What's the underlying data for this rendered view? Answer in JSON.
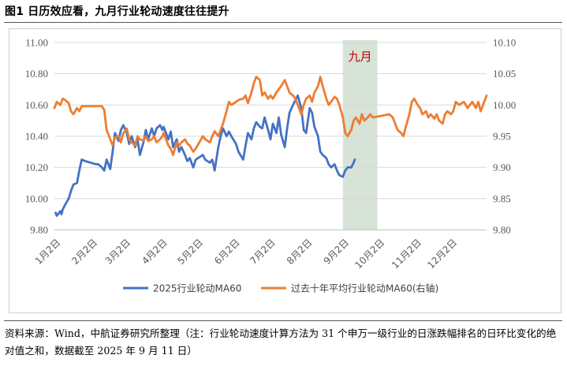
{
  "title": "图1  日历效应看，九月行业轮动速度往往提升",
  "source_note": "资料来源：Wind，中航证券研究所整理（注：行业轮动速度计算方法为 31 个申万一级行业的日涨跌幅排名的日环比变化的绝对值之和，数据截至 2025 年 9 月 11 日）",
  "colors": {
    "series_2025": "#4472C4",
    "series_10y": "#ED7D31",
    "highlight": "#D6E3D6",
    "highlight_text": "#C00000"
  },
  "chart_data": {
    "type": "line",
    "highlight": {
      "label": "九月",
      "x_start": "2025-09-01",
      "x_end": "2025-09-30"
    },
    "x_axis": {
      "range": [
        "2025-01-01",
        "2025-12-31"
      ],
      "ticks": [
        "2025-01-02",
        "2025-02-02",
        "2025-03-02",
        "2025-04-02",
        "2025-05-02",
        "2025-06-02",
        "2025-07-02",
        "2025-08-02",
        "2025-09-02",
        "2025-10-02",
        "2025-11-02",
        "2025-12-02"
      ],
      "tick_labels": [
        "1月2日",
        "2月2日",
        "3月2日",
        "4月2日",
        "5月2日",
        "6月2日",
        "7月2日",
        "8月2日",
        "9月2日",
        "10月2日",
        "11月2日",
        "12月2日"
      ]
    },
    "y_left": {
      "min": 9.8,
      "max": 11.0,
      "step": 0.2,
      "tick_labels": [
        "9.80",
        "10.00",
        "10.20",
        "10.40",
        "10.60",
        "10.80",
        "11.00"
      ]
    },
    "y_right": {
      "min": 9.8,
      "max": 10.1,
      "step": 0.05,
      "tick_labels": [
        "9.80",
        "9.85",
        "9.90",
        "9.95",
        "10.00",
        "10.05",
        "10.10"
      ]
    },
    "legend": {
      "placement": "bottom"
    },
    "series": [
      {
        "name": "2025行业轮动MA60",
        "axis": "left",
        "color": "#4472C4",
        "points": [
          [
            "2025-01-02",
            9.91
          ],
          [
            "2025-01-03",
            9.89
          ],
          [
            "2025-01-06",
            9.92
          ],
          [
            "2025-01-07",
            9.9
          ],
          [
            "2025-01-08",
            9.93
          ],
          [
            "2025-01-10",
            9.96
          ],
          [
            "2025-01-13",
            10.0
          ],
          [
            "2025-01-15",
            10.05
          ],
          [
            "2025-01-17",
            10.09
          ],
          [
            "2025-01-20",
            10.1
          ],
          [
            "2025-01-22",
            10.18
          ],
          [
            "2025-01-24",
            10.25
          ],
          [
            "2025-01-27",
            10.24
          ],
          [
            "2025-02-05",
            10.22
          ],
          [
            "2025-02-07",
            10.22
          ],
          [
            "2025-02-10",
            10.2
          ],
          [
            "2025-02-12",
            10.18
          ],
          [
            "2025-02-14",
            10.25
          ],
          [
            "2025-02-17",
            10.19
          ],
          [
            "2025-02-19",
            10.3
          ],
          [
            "2025-02-21",
            10.42
          ],
          [
            "2025-02-24",
            10.37
          ],
          [
            "2025-02-26",
            10.44
          ],
          [
            "2025-02-28",
            10.47
          ],
          [
            "2025-03-03",
            10.42
          ],
          [
            "2025-03-05",
            10.35
          ],
          [
            "2025-03-07",
            10.4
          ],
          [
            "2025-03-10",
            10.33
          ],
          [
            "2025-03-12",
            10.38
          ],
          [
            "2025-03-14",
            10.28
          ],
          [
            "2025-03-17",
            10.36
          ],
          [
            "2025-03-19",
            10.44
          ],
          [
            "2025-03-21",
            10.38
          ],
          [
            "2025-03-24",
            10.45
          ],
          [
            "2025-03-26",
            10.4
          ],
          [
            "2025-03-28",
            10.45
          ],
          [
            "2025-03-31",
            10.47
          ],
          [
            "2025-04-02",
            10.44
          ],
          [
            "2025-04-03",
            10.46
          ],
          [
            "2025-04-07",
            10.38
          ],
          [
            "2025-04-09",
            10.43
          ],
          [
            "2025-04-11",
            10.33
          ],
          [
            "2025-04-14",
            10.38
          ],
          [
            "2025-04-16",
            10.3
          ],
          [
            "2025-04-18",
            10.33
          ],
          [
            "2025-04-21",
            10.28
          ],
          [
            "2025-04-23",
            10.24
          ],
          [
            "2025-04-25",
            10.26
          ],
          [
            "2025-04-28",
            10.2
          ],
          [
            "2025-04-30",
            10.25
          ],
          [
            "2025-05-06",
            10.28
          ],
          [
            "2025-05-08",
            10.25
          ],
          [
            "2025-05-12",
            10.23
          ],
          [
            "2025-05-14",
            10.25
          ],
          [
            "2025-05-16",
            10.18
          ],
          [
            "2025-05-19",
            10.33
          ],
          [
            "2025-05-21",
            10.4
          ],
          [
            "2025-05-23",
            10.45
          ],
          [
            "2025-05-26",
            10.4
          ],
          [
            "2025-05-28",
            10.43
          ],
          [
            "2025-05-30",
            10.4
          ],
          [
            "2025-06-03",
            10.35
          ],
          [
            "2025-06-05",
            10.3
          ],
          [
            "2025-06-09",
            10.25
          ],
          [
            "2025-06-11",
            10.34
          ],
          [
            "2025-06-13",
            10.42
          ],
          [
            "2025-06-16",
            10.38
          ],
          [
            "2025-06-18",
            10.45
          ],
          [
            "2025-06-20",
            10.49
          ],
          [
            "2025-06-23",
            10.46
          ],
          [
            "2025-06-25",
            10.45
          ],
          [
            "2025-06-27",
            10.52
          ],
          [
            "2025-06-30",
            10.44
          ],
          [
            "2025-07-02",
            10.38
          ],
          [
            "2025-07-04",
            10.48
          ],
          [
            "2025-07-07",
            10.42
          ],
          [
            "2025-07-09",
            10.52
          ],
          [
            "2025-07-11",
            10.41
          ],
          [
            "2025-07-14",
            10.33
          ],
          [
            "2025-07-16",
            10.45
          ],
          [
            "2025-07-18",
            10.55
          ],
          [
            "2025-07-21",
            10.6
          ],
          [
            "2025-07-23",
            10.63
          ],
          [
            "2025-07-25",
            10.66
          ],
          [
            "2025-07-28",
            10.58
          ],
          [
            "2025-07-30",
            10.44
          ],
          [
            "2025-08-01",
            10.42
          ],
          [
            "2025-08-04",
            10.58
          ],
          [
            "2025-08-06",
            10.55
          ],
          [
            "2025-08-08",
            10.46
          ],
          [
            "2025-08-11",
            10.4
          ],
          [
            "2025-08-13",
            10.3
          ],
          [
            "2025-08-15",
            10.28
          ],
          [
            "2025-08-18",
            10.26
          ],
          [
            "2025-08-20",
            10.22
          ],
          [
            "2025-08-22",
            10.2
          ],
          [
            "2025-08-25",
            10.22
          ],
          [
            "2025-08-27",
            10.18
          ],
          [
            "2025-08-29",
            10.15
          ],
          [
            "2025-09-01",
            10.14
          ],
          [
            "2025-09-03",
            10.18
          ],
          [
            "2025-09-05",
            10.2
          ],
          [
            "2025-09-08",
            10.2
          ],
          [
            "2025-09-10",
            10.23
          ],
          [
            "2025-09-11",
            10.25
          ]
        ]
      },
      {
        "name": "过去十年平均行业轮动MA60(右轴)",
        "axis": "right",
        "color": "#ED7D31",
        "points": [
          [
            "2025-01-01",
            9.995
          ],
          [
            "2025-01-03",
            10.005
          ],
          [
            "2025-01-06",
            10.0
          ],
          [
            "2025-01-08",
            10.01
          ],
          [
            "2025-01-10",
            10.008
          ],
          [
            "2025-01-13",
            10.003
          ],
          [
            "2025-01-15",
            9.99
          ],
          [
            "2025-01-17",
            9.985
          ],
          [
            "2025-01-20",
            9.995
          ],
          [
            "2025-01-22",
            9.99
          ],
          [
            "2025-01-24",
            9.998
          ],
          [
            "2025-01-27",
            9.998
          ],
          [
            "2025-02-10",
            9.998
          ],
          [
            "2025-02-12",
            9.992
          ],
          [
            "2025-02-14",
            9.96
          ],
          [
            "2025-02-17",
            9.945
          ],
          [
            "2025-02-19",
            9.935
          ],
          [
            "2025-02-21",
            9.948
          ],
          [
            "2025-02-24",
            9.95
          ],
          [
            "2025-02-26",
            9.94
          ],
          [
            "2025-02-28",
            9.955
          ],
          [
            "2025-03-03",
            9.962
          ],
          [
            "2025-03-05",
            9.945
          ],
          [
            "2025-03-07",
            9.94
          ],
          [
            "2025-03-10",
            9.935
          ],
          [
            "2025-03-12",
            9.95
          ],
          [
            "2025-03-14",
            9.945
          ],
          [
            "2025-03-17",
            9.943
          ],
          [
            "2025-03-19",
            9.95
          ],
          [
            "2025-03-21",
            9.942
          ],
          [
            "2025-03-24",
            9.945
          ],
          [
            "2025-03-26",
            9.95
          ],
          [
            "2025-03-28",
            9.94
          ],
          [
            "2025-03-31",
            9.945
          ],
          [
            "2025-04-02",
            9.95
          ],
          [
            "2025-04-03",
            9.955
          ],
          [
            "2025-04-07",
            9.935
          ],
          [
            "2025-04-09",
            9.93
          ],
          [
            "2025-04-11",
            9.92
          ],
          [
            "2025-04-14",
            9.94
          ],
          [
            "2025-04-16",
            9.935
          ],
          [
            "2025-04-18",
            9.94
          ],
          [
            "2025-04-21",
            9.945
          ],
          [
            "2025-04-23",
            9.938
          ],
          [
            "2025-04-25",
            9.935
          ],
          [
            "2025-04-28",
            9.925
          ],
          [
            "2025-04-30",
            9.93
          ],
          [
            "2025-05-06",
            9.95
          ],
          [
            "2025-05-08",
            9.945
          ],
          [
            "2025-05-12",
            9.94
          ],
          [
            "2025-05-14",
            9.95
          ],
          [
            "2025-05-16",
            9.958
          ],
          [
            "2025-05-19",
            9.95
          ],
          [
            "2025-05-21",
            9.96
          ],
          [
            "2025-05-23",
            9.97
          ],
          [
            "2025-05-26",
            9.99
          ],
          [
            "2025-05-28",
            10.005
          ],
          [
            "2025-05-30",
            10.0
          ],
          [
            "2025-06-03",
            10.005
          ],
          [
            "2025-06-05",
            10.008
          ],
          [
            "2025-06-09",
            10.01
          ],
          [
            "2025-06-11",
            10.015
          ],
          [
            "2025-06-13",
            10.003
          ],
          [
            "2025-06-16",
            10.02
          ],
          [
            "2025-06-18",
            10.035
          ],
          [
            "2025-06-20",
            10.045
          ],
          [
            "2025-06-23",
            10.04
          ],
          [
            "2025-06-25",
            10.015
          ],
          [
            "2025-06-27",
            10.02
          ],
          [
            "2025-06-30",
            10.01
          ],
          [
            "2025-07-02",
            10.015
          ],
          [
            "2025-07-04",
            10.01
          ],
          [
            "2025-07-07",
            10.02
          ],
          [
            "2025-07-09",
            10.025
          ],
          [
            "2025-07-11",
            10.03
          ],
          [
            "2025-07-14",
            10.04
          ],
          [
            "2025-07-16",
            10.03
          ],
          [
            "2025-07-18",
            10.02
          ],
          [
            "2025-07-21",
            10.015
          ],
          [
            "2025-07-23",
            10.01
          ],
          [
            "2025-07-25",
            10.0
          ],
          [
            "2025-07-28",
            9.985
          ],
          [
            "2025-07-30",
            10.0
          ],
          [
            "2025-08-01",
            10.01
          ],
          [
            "2025-08-04",
            10.015
          ],
          [
            "2025-08-06",
            10.005
          ],
          [
            "2025-08-08",
            10.02
          ],
          [
            "2025-08-11",
            10.03
          ],
          [
            "2025-08-13",
            10.045
          ],
          [
            "2025-08-15",
            10.03
          ],
          [
            "2025-08-18",
            10.01
          ],
          [
            "2025-08-20",
            10.0
          ],
          [
            "2025-08-22",
            10.005
          ],
          [
            "2025-08-25",
            10.013
          ],
          [
            "2025-08-27",
            10.01
          ],
          [
            "2025-08-29",
            10.0
          ],
          [
            "2025-09-01",
            9.98
          ],
          [
            "2025-09-03",
            9.955
          ],
          [
            "2025-09-05",
            9.95
          ],
          [
            "2025-09-08",
            9.96
          ],
          [
            "2025-09-10",
            9.975
          ],
          [
            "2025-09-12",
            9.98
          ],
          [
            "2025-09-15",
            9.97
          ],
          [
            "2025-09-17",
            9.985
          ],
          [
            "2025-09-19",
            9.975
          ],
          [
            "2025-09-22",
            9.98
          ],
          [
            "2025-09-24",
            9.985
          ],
          [
            "2025-09-26",
            9.98
          ],
          [
            "2025-10-10",
            9.985
          ],
          [
            "2025-10-13",
            9.98
          ],
          [
            "2025-10-15",
            9.97
          ],
          [
            "2025-10-17",
            9.96
          ],
          [
            "2025-10-20",
            9.955
          ],
          [
            "2025-10-22",
            9.95
          ],
          [
            "2025-10-24",
            9.965
          ],
          [
            "2025-10-27",
            9.985
          ],
          [
            "2025-10-29",
            10.005
          ],
          [
            "2025-10-31",
            10.01
          ],
          [
            "2025-11-03",
            10.0
          ],
          [
            "2025-11-05",
            9.995
          ],
          [
            "2025-11-07",
            9.985
          ],
          [
            "2025-11-10",
            9.99
          ],
          [
            "2025-11-12",
            9.98
          ],
          [
            "2025-11-14",
            9.985
          ],
          [
            "2025-11-17",
            9.978
          ],
          [
            "2025-11-19",
            9.985
          ],
          [
            "2025-11-21",
            9.975
          ],
          [
            "2025-11-24",
            9.97
          ],
          [
            "2025-11-26",
            9.985
          ],
          [
            "2025-11-28",
            9.99
          ],
          [
            "2025-12-01",
            9.985
          ],
          [
            "2025-12-03",
            9.99
          ],
          [
            "2025-12-05",
            10.005
          ],
          [
            "2025-12-08",
            10.0
          ],
          [
            "2025-12-10",
            10.003
          ],
          [
            "2025-12-12",
            10.005
          ],
          [
            "2025-12-15",
            9.995
          ],
          [
            "2025-12-17",
            10.0
          ],
          [
            "2025-12-19",
            10.005
          ],
          [
            "2025-12-22",
            9.995
          ],
          [
            "2025-12-24",
            10.005
          ],
          [
            "2025-12-26",
            9.99
          ],
          [
            "2025-12-29",
            10.005
          ],
          [
            "2025-12-31",
            10.015
          ]
        ]
      }
    ]
  }
}
